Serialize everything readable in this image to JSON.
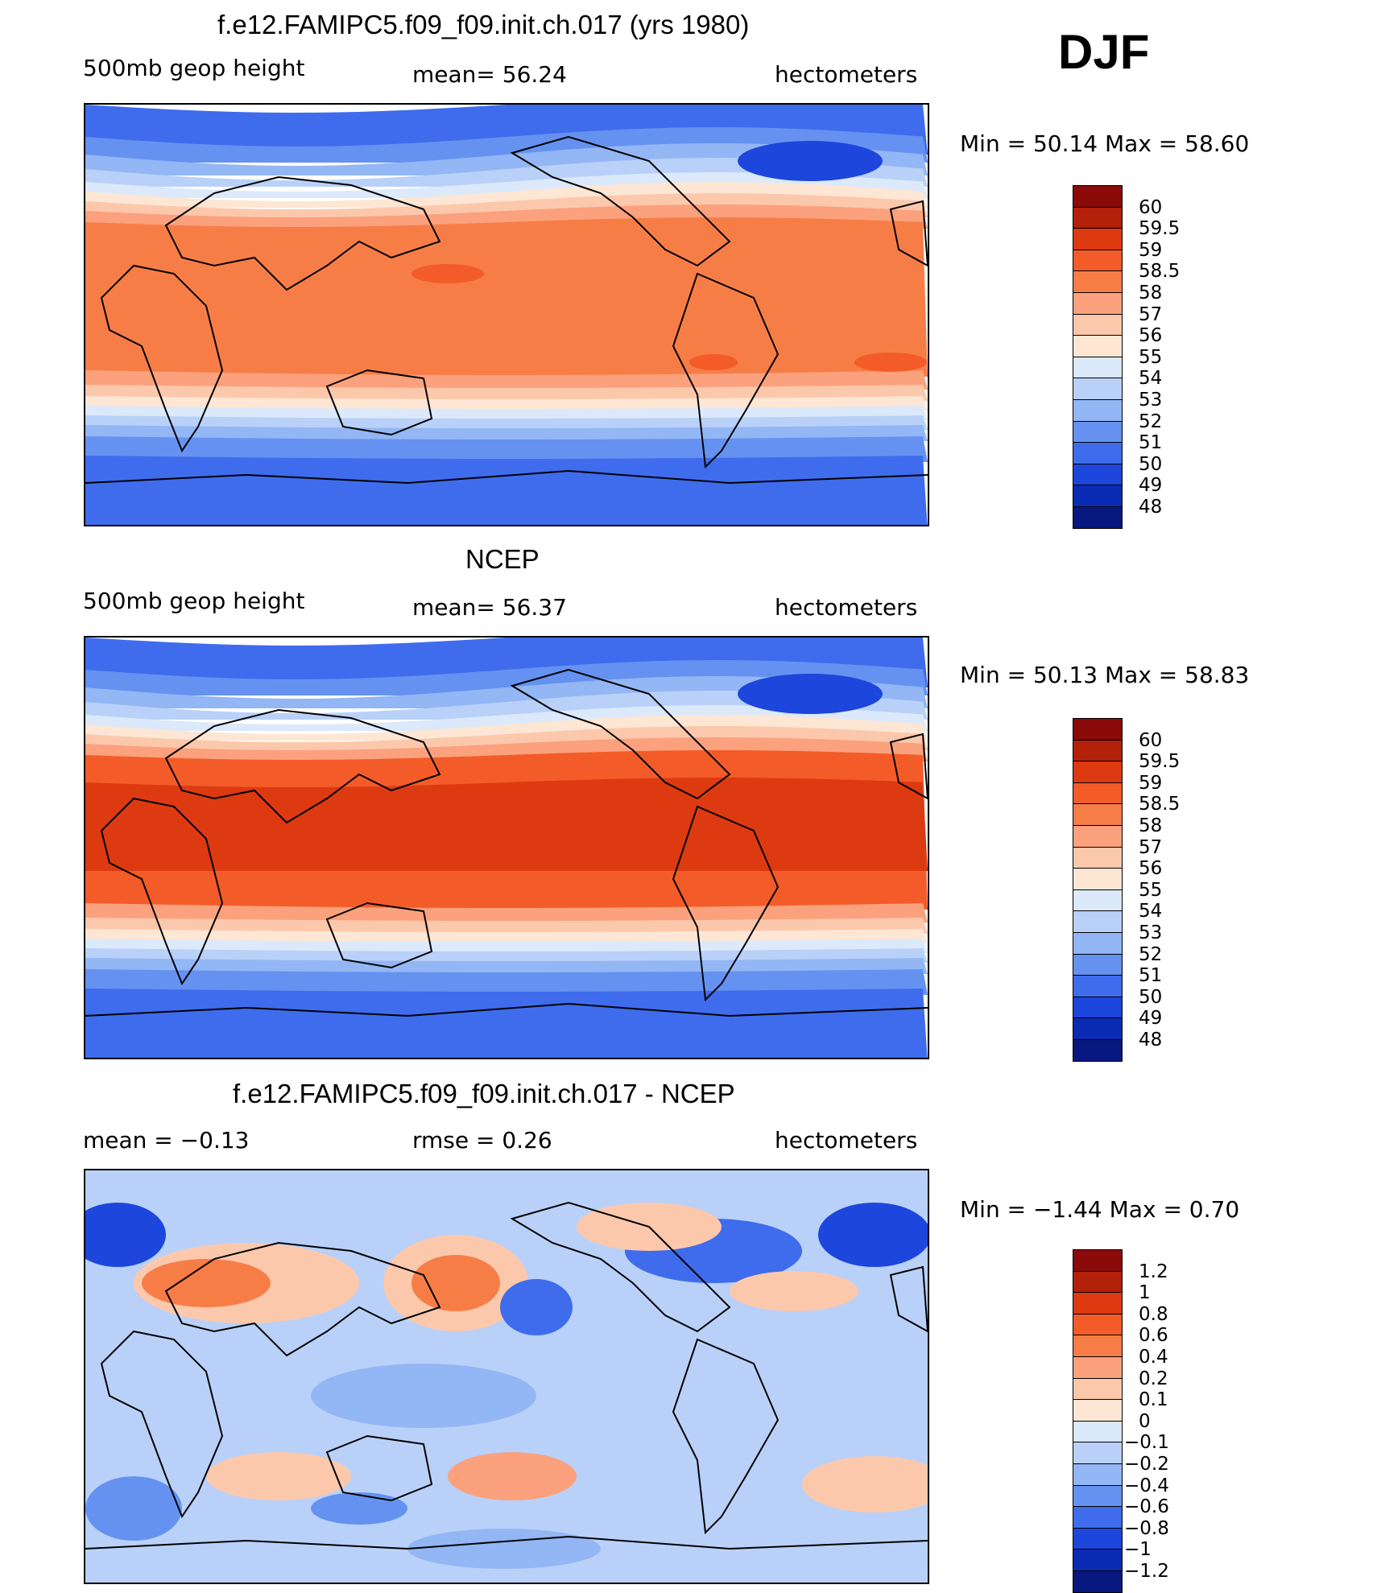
{
  "season": "DJF",
  "panels": [
    {
      "title": "f.e12.FAMIPC5.f09_f09.init.ch.017 (yrs 1980)",
      "left_label": "500mb  geop  height",
      "center_label": "mean=   56.24",
      "right_label": "hectometers",
      "minmax": "Min  =    50.14  Max  =    58.60",
      "colorbar_labels": [
        "60",
        "59.5",
        "59",
        "58.5",
        "58",
        "57",
        "56",
        "55",
        "54",
        "53",
        "52",
        "51",
        "50",
        "49",
        "48"
      ]
    },
    {
      "title": "NCEP",
      "left_label": "500mb  geop  height",
      "center_label": "mean=   56.37",
      "right_label": "hectometers",
      "minmax": "Min  =    50.13  Max  =    58.83",
      "colorbar_labels": [
        "60",
        "59.5",
        "59",
        "58.5",
        "58",
        "57",
        "56",
        "55",
        "54",
        "53",
        "52",
        "51",
        "50",
        "49",
        "48"
      ]
    },
    {
      "title": "f.e12.FAMIPC5.f09_f09.init.ch.017 - NCEP",
      "left_label": "mean  =    −0.13",
      "center_label": "rmse  =     0.26",
      "right_label": "hectometers",
      "minmax": "Min  =    −1.44  Max  =      0.70",
      "colorbar_labels": [
        "1.2",
        "1",
        "0.8",
        "0.6",
        "0.4",
        "0.2",
        "0.1",
        "0",
        "−0.1",
        "−0.2",
        "−0.4",
        "−0.6",
        "−0.8",
        "−1",
        "−1.2"
      ]
    }
  ],
  "palette": [
    "#8b0a0a",
    "#b3210b",
    "#dd3a12",
    "#f35c28",
    "#f77d47",
    "#fba17d",
    "#fcc8ac",
    "#fde6d3",
    "#dbe9fb",
    "#b9d1f8",
    "#93b6f5",
    "#6592f0",
    "#3e6cec",
    "#1d46dc",
    "#0a2bb4",
    "#06187f"
  ]
}
